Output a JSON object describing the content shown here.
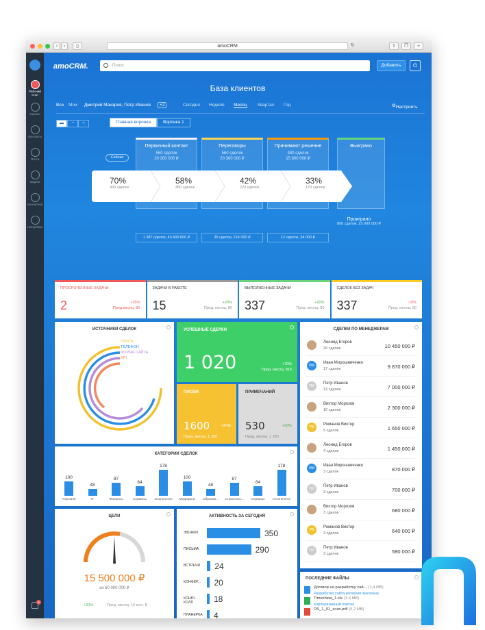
{
  "browser": {
    "url_title": "amoCRM"
  },
  "sidebar": {
    "items": [
      {
        "label": "Рабочий стол",
        "icon": "dashboard-icon"
      },
      {
        "label": "Сделки",
        "icon": "dollar-icon"
      },
      {
        "label": "Контакты",
        "icon": "contacts-icon"
      },
      {
        "label": "Почта",
        "icon": "mail-icon"
      },
      {
        "label": "Задачи",
        "icon": "check-icon"
      },
      {
        "label": "Аналитика",
        "icon": "analytics-icon"
      },
      {
        "label": "Настройки",
        "icon": "settings-icon"
      }
    ],
    "notification_count": "5"
  },
  "header": {
    "logo": "amoCRM.",
    "search_placeholder": "Поиск",
    "add_label": "Добавить"
  },
  "page_title": "База клиентов",
  "filters": {
    "all": "Все",
    "mine": "Мои",
    "users": "Дмитрий Макаров, Петр Иванов",
    "users_more": "+2",
    "periods": [
      "Сегодня",
      "Неделя",
      "Месяц",
      "Квартал",
      "Год"
    ],
    "active_period": "Месяц",
    "settings": "Настроить"
  },
  "funnels": [
    "Главная воронка",
    "Воронка 1"
  ],
  "now_label": "Сейчас",
  "stages": [
    {
      "name": "Первичный контакт",
      "deals": "560 сделок",
      "sum": "20 300 000 ₽",
      "conv": "70%",
      "conv_deals": "900 сделок",
      "foot": "1 387 сделок, 43 600 000 ₽",
      "color": "#f4f4f4"
    },
    {
      "name": "Переговоры",
      "deals": "560 сделок",
      "sum": "20 300 000 ₽",
      "conv": "58%",
      "conv_deals": "450 сделок",
      "foot": "35 сделок, 214 000 ₽",
      "color": "#ffd54f"
    },
    {
      "name": "Принимают решение",
      "deals": "480 сделок",
      "sum": "15 800 000 ₽",
      "conv": "42%",
      "conv_deals": "220 сделок",
      "foot": "12 сделок, 34 000 ₽",
      "color": "#ff9800"
    },
    {
      "name": "Выиграно",
      "deals": "",
      "sum": "",
      "conv": "33%",
      "conv_deals": "170 сделок",
      "foot": "",
      "color": "#66d67a"
    }
  ],
  "lost": {
    "title": "Проиграно",
    "sub": "800 сделок, 25 000 000 ₽"
  },
  "kpis": [
    {
      "title": "ПРОСРОЧЕННЫЕ ЗАДАЧИ",
      "value": "2",
      "delta": "+35%",
      "prev": "Пред.месяц: 80",
      "color": "#f05a5a",
      "value_color": "#f05a5a"
    },
    {
      "title": "ЗАДАЧИ В РАБОТЕ",
      "value": "15",
      "delta": "+20%",
      "prev": "Пред. месяц: 80",
      "color": "#999999",
      "value_color": "#333333"
    },
    {
      "title": "ВЫПОЛНЕННЫЕ ЗАДАЧИ",
      "value": "337",
      "delta": "+20%",
      "prev": "Пред. месяц: 80",
      "color": "#6ad27b",
      "value_color": "#333333"
    },
    {
      "title": "СДЕЛОК БЕЗ ЗАДАЧ",
      "value": "337",
      "delta": "-10%",
      "prev": "Пред. месяц: 80",
      "color": "#ffca28",
      "value_color": "#333333"
    }
  ],
  "sources": {
    "title": "ИСТОЧНИКИ СДЕЛОК",
    "legend": [
      {
        "label": "ПОЧТА",
        "color": "#f2c12e"
      },
      {
        "label": "ТЕЛЕФОН",
        "color": "#2b8ee5"
      },
      {
        "label": "ФОРМА САЙТА",
        "color": "#b48cd8"
      },
      {
        "label": "API",
        "color": "#f08a5d"
      }
    ]
  },
  "successful": {
    "title": "УСПЕШНЫЕ СДЕЛКИ",
    "value": "1 020",
    "delta": "+70%",
    "prev": "Пред. месяц: 816"
  },
  "letters": {
    "title": "ПИСЕМ",
    "value": "1600",
    "delta": "+20%",
    "prev": "Пред. месяц: 1 180"
  },
  "notes": {
    "title": "ПРИМЕЧАНИЙ",
    "value": "530",
    "delta": "+20%",
    "prev": "Пред. месяц: 1 280"
  },
  "managers": {
    "title": "СДЕЛКИ ПО МЕНЕДЖЕРАМ",
    "rows": [
      {
        "name": "Леонид Егоров",
        "deals": "20 сделок",
        "sum": "10 450 000 ₽",
        "initials": "",
        "color": "#c9a27e"
      },
      {
        "name": "Иван Мирошниченко",
        "deals": "17 сделок",
        "sum": "9 870 000 ₽",
        "initials": "ИМ",
        "color": "#2b8ee5"
      },
      {
        "name": "Петр Иванов",
        "deals": "13 сделок",
        "sum": "7 000 000 ₽",
        "initials": "ПИ",
        "color": "#cccccc"
      },
      {
        "name": "Виктор Морозов",
        "deals": "10 сделок",
        "sum": "2 300 000 ₽",
        "initials": "",
        "color": "#c9a27e"
      },
      {
        "name": "Романов Виктор",
        "deals": "5 сделок",
        "sum": "1 650 000 ₽",
        "initials": "РВ",
        "color": "#f2c12e"
      },
      {
        "name": "Леонид Егоров",
        "deals": "4 сделок",
        "sum": "1 450 000 ₽",
        "initials": "",
        "color": "#c9a27e"
      },
      {
        "name": "Иван Мирошниченко",
        "deals": "3 сделок",
        "sum": "870 000 ₽",
        "initials": "ИМ",
        "color": "#2b8ee5"
      },
      {
        "name": "Петр Иванов",
        "deals": "3 сделок",
        "sum": "700 000 ₽",
        "initials": "ПИ",
        "color": "#cccccc"
      },
      {
        "name": "Виктор Морозов",
        "deals": "3 сделок",
        "sum": "680 000 ₽",
        "initials": "",
        "color": "#c9a27e"
      },
      {
        "name": "Романов Виктор",
        "deals": "3 сделок",
        "sum": "640 000 ₽",
        "initials": "РВ",
        "color": "#f2c12e"
      },
      {
        "name": "Петр Иванов",
        "deals": "3 сделок",
        "sum": "580 000 ₽",
        "initials": "ПИ",
        "color": "#cccccc"
      }
    ]
  },
  "categories": {
    "title": "КАТЕГОРИИ СДЕЛОК",
    "items": [
      {
        "label": "Торговля",
        "value": 100
      },
      {
        "label": "IT",
        "value": 48
      },
      {
        "label": "Финансы",
        "value": 87
      },
      {
        "label": "Сервисы",
        "value": 64
      },
      {
        "label": "eCommerce",
        "value": 178
      },
      {
        "label": "Медицина",
        "value": 100
      },
      {
        "label": "Образов...",
        "value": 48
      },
      {
        "label": "Строитель...",
        "value": 87
      },
      {
        "label": "Сервисы",
        "value": 64
      },
      {
        "label": "eCommerce",
        "value": 178
      }
    ]
  },
  "goals": {
    "title": "ЦЕЛИ",
    "value": "15 500 000 ₽",
    "target": "из 60 000 000 ₽",
    "delta": "+20%",
    "prev": "Пред. месяц: 10 мон. ₽"
  },
  "activity": {
    "title": "АКТИВНОСТЬ ЗА СЕГОДНЯ",
    "items": [
      {
        "label": "ЗВОНКИ",
        "value": 350
      },
      {
        "label": "ПИСЬМА",
        "value": 290
      },
      {
        "label": "ВСТРЕЧИ",
        "value": 24
      },
      {
        "label": "КОНФЕР...",
        "value": 20
      },
      {
        "label": "КОНЮ-КОЛЛ",
        "value": 18
      },
      {
        "label": "ПЛАНЕРКА",
        "value": 4
      }
    ]
  },
  "files": {
    "title": "ПОСЛЕДНИЕ ФАЙЛЫ",
    "items": [
      {
        "name": "Договор на разработку сай...",
        "size": "(1,4 MB)",
        "link": "Разработка сайта интернет магазина",
        "color": "#2b8ee5"
      },
      {
        "name": "Timesheet_1.xls",
        "size": "(3,4 MB)",
        "link": "Корпоративный портал",
        "color": "#2eae55"
      },
      {
        "name": "DS_1_01_scan.pdf",
        "size": "(5,2 MB)",
        "link": "",
        "color": "#e24b3b"
      }
    ]
  }
}
